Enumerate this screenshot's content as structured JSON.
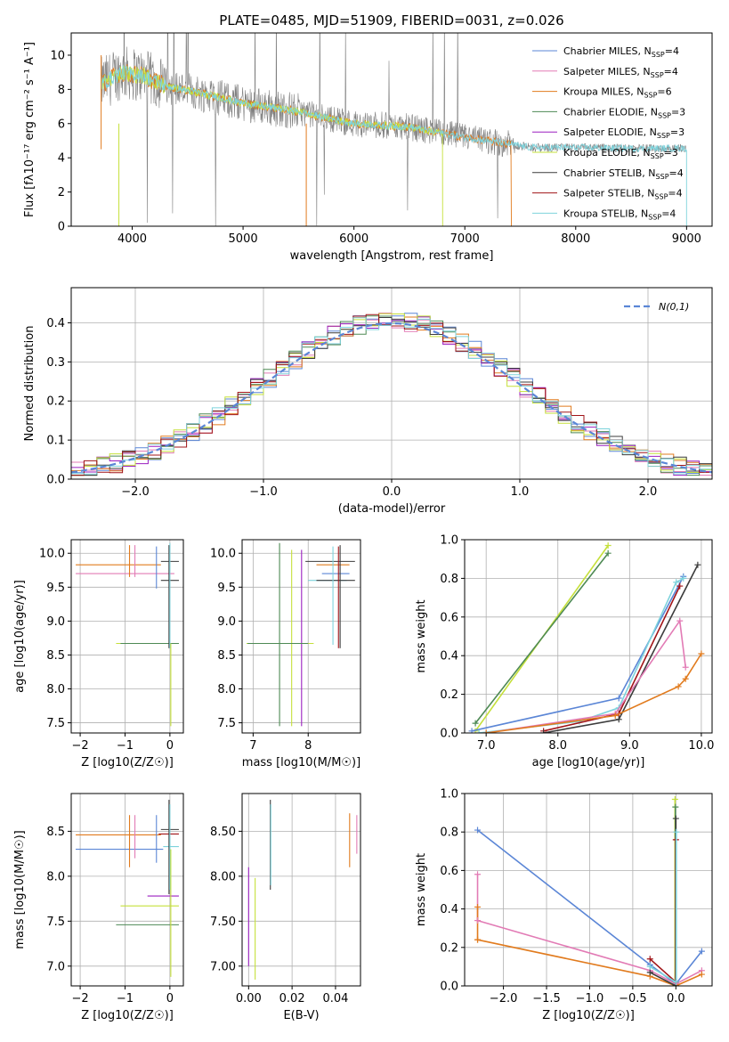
{
  "figure": {
    "title": "PLATE=0485, MJD=51909, FIBERID=0031, z=0.026",
    "colors": {
      "chabrier_miles": "#5b86d6",
      "salpeter_miles": "#e27bb5",
      "kroupa_miles": "#e17b1e",
      "chabrier_elodie": "#4e8a54",
      "salpeter_elodie": "#9b1fc0",
      "kroupa_elodie": "#c5e03a",
      "chabrier_stelib": "#3c3c3c",
      "salpeter_stelib": "#a01418",
      "kroupa_stelib": "#7ed3dc",
      "observed": "#808080",
      "gaussian": "#5b86d6"
    }
  },
  "chart_data": [
    {
      "id": "spectrum",
      "type": "line",
      "title": "PLATE=0485, MJD=51909, FIBERID=0031, z=0.026",
      "xlabel": "wavelength [Angstrom, rest frame]",
      "ylabel": "Flux [fλ10⁻¹⁷ erg cm⁻² s⁻¹ A⁻¹]",
      "xlim": [
        3450,
        9230
      ],
      "ylim": [
        0,
        11.3
      ],
      "xticks": [
        4000,
        5000,
        6000,
        7000,
        8000,
        9000
      ],
      "yticks": [
        0,
        2,
        4,
        6,
        8,
        10
      ],
      "grid": false,
      "legend_position": "top-right",
      "legend": [
        "Chabrier MILES, NSSP=4",
        "Salpeter MILES, NSSP=4",
        "Kroupa MILES, NSSP=6",
        "Chabrier ELODIE, NSSP=3",
        "Salpeter ELODIE, NSSP=3",
        "Kroupa ELODIE, NSSP=3",
        "Chabrier STELIB, NSSP=4",
        "Salpeter STELIB, NSSP=4",
        "Kroupa STELIB, NSSP=4"
      ],
      "continuum": {
        "x": [
          3720,
          3900,
          4100,
          4300,
          4600,
          5000,
          5500,
          6000,
          6500,
          7000,
          7400,
          7600,
          8000,
          8500,
          9000
        ],
        "y": [
          8.3,
          9.0,
          8.8,
          8.2,
          7.8,
          7.2,
          6.7,
          6.0,
          5.8,
          5.2,
          4.8,
          4.6,
          4.6,
          4.55,
          4.55
        ]
      },
      "model_ranges": {
        "miles": [
          3720,
          7420
        ],
        "elodie": [
          3720,
          6800
        ],
        "stelib": [
          3720,
          9000
        ]
      }
    },
    {
      "id": "residual-histogram",
      "type": "line",
      "xlabel": "(data-model)/error",
      "ylabel": "Normed distribution",
      "xlim": [
        -2.5,
        2.5
      ],
      "ylim": [
        0,
        0.49
      ],
      "xticks": [
        -2,
        -1,
        0,
        1,
        2
      ],
      "yticks": [
        0.0,
        0.1,
        0.2,
        0.3,
        0.4
      ],
      "grid": true,
      "legend_position": "top-right",
      "legend": [
        "N(0,1)"
      ],
      "bin_width": 0.1
    },
    {
      "id": "age-vs-Z",
      "type": "scatter",
      "xlabel": "Z [log10(Z/Z☉)]",
      "ylabel": "age  [log10(age/yr)]",
      "xlim": [
        -2.2,
        0.3
      ],
      "ylim": [
        7.35,
        10.2
      ],
      "xticks": [
        -2,
        -1,
        0
      ],
      "yticks": [
        7.5,
        8.0,
        8.5,
        9.0,
        9.5,
        10.0
      ],
      "grid": true,
      "points": [
        {
          "s": "kroupa_miles",
          "x": -1.15,
          "y": 9.83,
          "xe": [
            -2.1,
            -0.2
          ],
          "ye": [
            9.83,
            9.83
          ]
        },
        {
          "s": "salpeter_miles",
          "x": -1.05,
          "y": 9.7,
          "xe": [
            -2.1,
            0.1
          ],
          "ye": [
            9.7,
            9.7
          ]
        },
        {
          "s": "kroupa_miles",
          "x": -0.9,
          "y": 9.9,
          "xe": [
            -0.9,
            -0.9
          ],
          "ye": [
            9.65,
            10.12
          ]
        },
        {
          "s": "salpeter_miles",
          "x": -0.78,
          "y": 9.9,
          "xe": [
            -0.78,
            -0.78
          ],
          "ye": [
            9.65,
            10.12
          ]
        },
        {
          "s": "chabrier_miles",
          "x": -0.3,
          "y": 9.85,
          "xe": [
            -0.3,
            -0.3
          ],
          "ye": [
            9.48,
            10.1
          ]
        },
        {
          "s": "chabrier_stelib",
          "x": 0.0,
          "y": 9.88,
          "xe": [
            -0.2,
            0.2
          ],
          "ye": [
            9.88,
            9.88
          ]
        },
        {
          "s": "chabrier_stelib",
          "x": 0.0,
          "y": 9.6,
          "xe": [
            -0.2,
            0.2
          ],
          "ye": [
            9.6,
            9.6
          ]
        },
        {
          "s": "kroupa_elodie",
          "x": -0.4,
          "y": 8.67,
          "xe": [
            -1.2,
            0.2
          ],
          "ye": [
            8.67,
            8.67
          ]
        },
        {
          "s": "chabrier_elodie",
          "x": -0.4,
          "y": 8.67,
          "xe": [
            -1.1,
            0.2
          ],
          "ye": [
            8.67,
            8.67
          ]
        },
        {
          "s": "chabrier_stelib",
          "x": -0.02,
          "y": 9.3,
          "xe": [
            -0.02,
            -0.02
          ],
          "ye": [
            8.6,
            10.12
          ]
        },
        {
          "s": "kroupa_stelib",
          "x": 0.0,
          "y": 9.3,
          "xe": [
            0.0,
            0.0
          ],
          "ye": [
            8.6,
            10.15
          ]
        },
        {
          "s": "kroupa_elodie",
          "x": 0.02,
          "y": 8.2,
          "xe": [
            0.02,
            0.02
          ],
          "ye": [
            7.45,
            8.67
          ]
        }
      ]
    },
    {
      "id": "age-vs-mass",
      "type": "scatter",
      "xlabel": "mass [log10(M/M☉)]",
      "ylabel": "",
      "xlim": [
        6.8,
        8.95
      ],
      "ylim": [
        7.35,
        10.2
      ],
      "xticks": [
        7,
        8
      ],
      "yticks": [
        7.5,
        8.0,
        8.5,
        9.0,
        9.5,
        10.0
      ],
      "grid": true,
      "points": [
        {
          "s": "chabrier_elodie",
          "x": 7.48,
          "y": 8.8,
          "xe": [
            7.48,
            7.48
          ],
          "ye": [
            7.45,
            10.15
          ]
        },
        {
          "s": "kroupa_elodie",
          "x": 7.7,
          "y": 8.5,
          "xe": [
            7.7,
            7.7
          ],
          "ye": [
            7.45,
            10.05
          ]
        },
        {
          "s": "salpeter_elodie",
          "x": 7.88,
          "y": 8.75,
          "xe": [
            7.88,
            7.88
          ],
          "ye": [
            7.45,
            10.05
          ]
        },
        {
          "s": "kroupa_elodie",
          "x": 7.5,
          "y": 8.67,
          "xe": [
            6.88,
            8.1
          ],
          "ye": [
            8.67,
            8.67
          ]
        },
        {
          "s": "chabrier_elodie",
          "x": 7.5,
          "y": 8.67,
          "xe": [
            6.9,
            8.0
          ],
          "ye": [
            8.67,
            8.67
          ]
        },
        {
          "s": "chabrier_stelib",
          "x": 8.5,
          "y": 9.88,
          "xe": [
            7.95,
            8.85
          ],
          "ye": [
            9.88,
            9.88
          ]
        },
        {
          "s": "kroupa_miles",
          "x": 8.45,
          "y": 9.83,
          "xe": [
            8.15,
            8.75
          ],
          "ye": [
            9.83,
            9.83
          ]
        },
        {
          "s": "chabrier_miles",
          "x": 8.5,
          "y": 9.7,
          "xe": [
            8.25,
            8.75
          ],
          "ye": [
            9.7,
            9.7
          ]
        },
        {
          "s": "kroupa_stelib",
          "x": 8.35,
          "y": 9.6,
          "xe": [
            8.0,
            8.7
          ],
          "ye": [
            9.6,
            9.6
          ]
        },
        {
          "s": "chabrier_stelib",
          "x": 8.5,
          "y": 9.6,
          "xe": [
            8.15,
            8.85
          ],
          "ye": [
            9.6,
            9.6
          ]
        },
        {
          "s": "kroupa_stelib",
          "x": 8.45,
          "y": 9.4,
          "xe": [
            8.45,
            8.45
          ],
          "ye": [
            8.65,
            10.1
          ]
        },
        {
          "s": "salpeter_stelib",
          "x": 8.55,
          "y": 9.4,
          "xe": [
            8.55,
            8.55
          ],
          "ye": [
            8.6,
            10.1
          ]
        },
        {
          "s": "chabrier_stelib",
          "x": 8.58,
          "y": 9.4,
          "xe": [
            8.58,
            8.58
          ],
          "ye": [
            8.6,
            10.12
          ]
        }
      ]
    },
    {
      "id": "massweight-vs-age",
      "type": "line",
      "xlabel": "age  [log10(age/yr)]",
      "ylabel": "mass weight",
      "xlim": [
        6.7,
        10.15
      ],
      "ylim": [
        0,
        1.0
      ],
      "xticks": [
        7,
        8,
        9,
        10
      ],
      "yticks": [
        0.0,
        0.2,
        0.4,
        0.6,
        0.8,
        1.0
      ],
      "grid": true,
      "series": [
        {
          "s": "kroupa_elodie",
          "x": [
            6.85,
            8.7
          ],
          "y": [
            0.01,
            0.97
          ]
        },
        {
          "s": "chabrier_elodie",
          "x": [
            6.85,
            8.7
          ],
          "y": [
            0.05,
            0.93
          ]
        },
        {
          "s": "chabrier_miles",
          "x": [
            6.8,
            8.85,
            9.75
          ],
          "y": [
            0.01,
            0.18,
            0.81
          ]
        },
        {
          "s": "kroupa_stelib",
          "x": [
            6.9,
            8.3,
            8.85,
            9.65,
            9.75
          ],
          "y": [
            0.0,
            0.06,
            0.13,
            0.78,
            0.8
          ]
        },
        {
          "s": "salpeter_stelib",
          "x": [
            7.8,
            8.85,
            9.7
          ],
          "y": [
            0.01,
            0.1,
            0.76
          ]
        },
        {
          "s": "chabrier_stelib",
          "x": [
            7.8,
            8.85,
            9.95
          ],
          "y": [
            0.0,
            0.07,
            0.87
          ]
        },
        {
          "s": "salpeter_miles",
          "x": [
            7.0,
            8.8,
            9.7,
            9.78
          ],
          "y": [
            0.0,
            0.1,
            0.58,
            0.34
          ]
        },
        {
          "s": "kroupa_miles",
          "x": [
            7.0,
            8.8,
            9.68,
            9.78,
            10.0
          ],
          "y": [
            0.0,
            0.09,
            0.24,
            0.28,
            0.41
          ]
        }
      ]
    },
    {
      "id": "mass-vs-Z",
      "type": "scatter",
      "xlabel": "Z [log10(Z/Z☉)]",
      "ylabel": "mass [log10(M/M☉)]",
      "xlim": [
        -2.2,
        0.3
      ],
      "ylim": [
        6.78,
        8.92
      ],
      "xticks": [
        -2,
        -1,
        0
      ],
      "yticks": [
        7.0,
        7.5,
        8.0,
        8.5
      ],
      "grid": true,
      "points": [
        {
          "s": "kroupa_miles",
          "x": -1.1,
          "y": 8.46,
          "xe": [
            -2.1,
            -0.2
          ],
          "ye": [
            8.46,
            8.46
          ]
        },
        {
          "s": "chabrier_miles",
          "x": -0.9,
          "y": 8.3,
          "xe": [
            -2.1,
            -0.15
          ],
          "ye": [
            8.3,
            8.3
          ]
        },
        {
          "s": "kroupa_miles",
          "x": -0.9,
          "y": 8.4,
          "xe": [
            -0.9,
            -0.9
          ],
          "ye": [
            8.1,
            8.68
          ]
        },
        {
          "s": "salpeter_miles",
          "x": -0.78,
          "y": 8.45,
          "xe": [
            -0.78,
            -0.78
          ],
          "ye": [
            8.2,
            8.68
          ]
        },
        {
          "s": "chabrier_miles",
          "x": -0.3,
          "y": 8.45,
          "xe": [
            -0.3,
            -0.3
          ],
          "ye": [
            8.15,
            8.68
          ]
        },
        {
          "s": "chabrier_stelib",
          "x": 0.0,
          "y": 8.52,
          "xe": [
            -0.2,
            0.2
          ],
          "ye": [
            8.52,
            8.52
          ]
        },
        {
          "s": "salpeter_stelib",
          "x": 0.0,
          "y": 8.47,
          "xe": [
            -0.25,
            0.2
          ],
          "ye": [
            8.47,
            8.47
          ]
        },
        {
          "s": "kroupa_stelib",
          "x": 0.0,
          "y": 8.33,
          "xe": [
            -0.15,
            0.2
          ],
          "ye": [
            8.33,
            8.33
          ]
        },
        {
          "s": "chabrier_stelib",
          "x": -0.02,
          "y": 8.3,
          "xe": [
            -0.02,
            -0.02
          ],
          "ye": [
            7.8,
            8.85
          ]
        },
        {
          "s": "kroupa_stelib",
          "x": 0.0,
          "y": 8.3,
          "xe": [
            0.0,
            0.0
          ],
          "ye": [
            7.85,
            8.8
          ]
        },
        {
          "s": "salpeter_elodie",
          "x": -0.4,
          "y": 7.78,
          "xe": [
            -0.5,
            0.2
          ],
          "ye": [
            7.78,
            7.78
          ]
        },
        {
          "s": "kroupa_elodie",
          "x": -0.4,
          "y": 7.67,
          "xe": [
            -1.1,
            0.2
          ],
          "ye": [
            7.67,
            7.67
          ]
        },
        {
          "s": "chabrier_elodie",
          "x": -0.4,
          "y": 7.46,
          "xe": [
            -1.2,
            0.2
          ],
          "ye": [
            7.46,
            7.46
          ]
        },
        {
          "s": "kroupa_elodie",
          "x": 0.02,
          "y": 7.5,
          "xe": [
            0.02,
            0.02
          ],
          "ye": [
            6.88,
            8.3
          ]
        }
      ]
    },
    {
      "id": "mass-vs-EBV",
      "type": "scatter",
      "xlabel": "E(B-V)",
      "ylabel": "",
      "xlim": [
        -0.003,
        0.0515
      ],
      "ylim": [
        6.78,
        8.92
      ],
      "xticks": [
        0.0,
        0.02,
        0.04
      ],
      "yticks": [
        7.0,
        7.5,
        8.0,
        8.5
      ],
      "grid": true,
      "points": [
        {
          "s": "salpeter_elodie",
          "x": 0.0,
          "y": 7.5,
          "xe": [
            0.0,
            0.0
          ],
          "ye": [
            7.0,
            8.1
          ]
        },
        {
          "s": "kroupa_elodie",
          "x": 0.003,
          "y": 7.4,
          "xe": [
            0.003,
            0.003
          ],
          "ye": [
            6.85,
            7.98
          ]
        },
        {
          "s": "chabrier_stelib",
          "x": 0.01,
          "y": 8.35,
          "xe": [
            0.01,
            0.01
          ],
          "ye": [
            7.85,
            8.85
          ]
        },
        {
          "s": "kroupa_stelib",
          "x": 0.0102,
          "y": 8.35,
          "xe": [
            0.0102,
            0.0102
          ],
          "ye": [
            7.9,
            8.8
          ]
        },
        {
          "s": "kroupa_miles",
          "x": 0.0465,
          "y": 8.4,
          "xe": [
            0.0465,
            0.0465
          ],
          "ye": [
            8.1,
            8.7
          ]
        },
        {
          "s": "salpeter_miles",
          "x": 0.0498,
          "y": 8.45,
          "xe": [
            0.0498,
            0.0498
          ],
          "ye": [
            8.25,
            8.68
          ]
        }
      ]
    },
    {
      "id": "massweight-vs-Z",
      "type": "line",
      "xlabel": "Z [log10(Z/Z☉)]",
      "ylabel": "mass weight",
      "xlim": [
        -2.45,
        0.42
      ],
      "ylim": [
        0,
        1.0
      ],
      "xticks": [
        -2.0,
        -1.5,
        -1.0,
        -0.5,
        0.0
      ],
      "yticks": [
        0.0,
        0.2,
        0.4,
        0.6,
        0.8,
        1.0
      ],
      "grid": true,
      "series": [
        {
          "s": "chabrier_miles",
          "x": [
            -2.3,
            -0.3,
            0.0,
            0.3
          ],
          "y": [
            0.81,
            0.11,
            0.01,
            0.18
          ]
        },
        {
          "s": "salpeter_miles",
          "x": [
            -2.3,
            -0.3,
            0.0,
            0.3
          ],
          "y": [
            0.34,
            0.08,
            0.01,
            0.08
          ]
        },
        {
          "s": "kroupa_miles",
          "x": [
            -2.3,
            -0.3,
            0.0,
            0.3
          ],
          "y": [
            0.24,
            0.05,
            0.0,
            0.06
          ]
        },
        {
          "s": "salpeter_stelib",
          "x": [
            -0.3,
            0.0
          ],
          "y": [
            0.14,
            0.02
          ]
        },
        {
          "s": "chabrier_stelib",
          "x": [
            -0.3,
            0.0
          ],
          "y": [
            0.07,
            0.0
          ]
        },
        {
          "s": "kroupa_stelib",
          "x": [
            -0.3,
            0.0
          ],
          "y": [
            0.1,
            0.02
          ]
        }
      ],
      "vertical": [
        {
          "s": "salpeter_miles",
          "x": -2.3,
          "y": [
            0.34,
            0.58
          ]
        },
        {
          "s": "kroupa_miles",
          "x": -2.3,
          "y": [
            0.24,
            0.41
          ]
        },
        {
          "s": "kroupa_elodie",
          "x": -0.01,
          "y": [
            0.0,
            0.97
          ]
        },
        {
          "s": "chabrier_elodie",
          "x": -0.005,
          "y": [
            0.0,
            0.93
          ]
        },
        {
          "s": "chabrier_stelib",
          "x": 0.0,
          "y": [
            0.0,
            0.87
          ]
        },
        {
          "s": "salpeter_stelib",
          "x": 0.0,
          "y": [
            0.0,
            0.76
          ]
        },
        {
          "s": "kroupa_stelib",
          "x": 0.005,
          "y": [
            0.0,
            0.8
          ]
        }
      ]
    }
  ]
}
